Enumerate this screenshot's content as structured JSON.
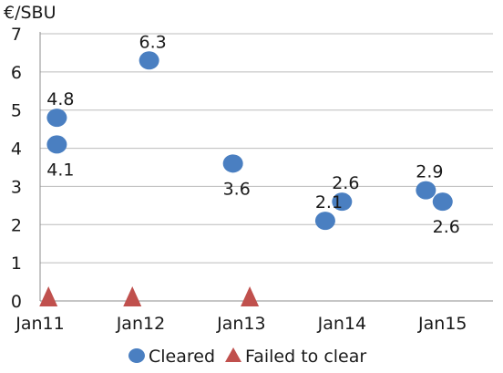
{
  "chart_data": {
    "type": "scatter",
    "title": "",
    "ylabel": "€/SBU",
    "xlabel": "",
    "ylim": [
      0,
      7
    ],
    "y_ticks": [
      "0",
      "1",
      "2",
      "3",
      "4",
      "5",
      "6",
      "7"
    ],
    "x_range": [
      "2011-01",
      "2015-07"
    ],
    "x_ticks": [
      {
        "label": "Jan11",
        "date": "2011-01"
      },
      {
        "label": "Jan12",
        "date": "2012-01"
      },
      {
        "label": "Jan13",
        "date": "2013-01"
      },
      {
        "label": "Jan14",
        "date": "2014-01"
      },
      {
        "label": "Jan15",
        "date": "2015-01"
      }
    ],
    "grid": "horizontal",
    "legend_position": "bottom",
    "series": [
      {
        "name": "Cleared",
        "marker": "circle",
        "color": "#4a7fc1",
        "points": [
          {
            "date": "2011-03",
            "y": 4.8,
            "label": "4.8",
            "label_pos": "above"
          },
          {
            "date": "2011-03",
            "y": 4.1,
            "label": "4.1",
            "label_pos": "below"
          },
          {
            "date": "2012-02",
            "y": 6.3,
            "label": "6.3",
            "label_pos": "above"
          },
          {
            "date": "2012-12",
            "y": 3.6,
            "label": "3.6",
            "label_pos": "below"
          },
          {
            "date": "2013-11",
            "y": 2.1,
            "label": "2.1",
            "label_pos": "above"
          },
          {
            "date": "2014-01",
            "y": 2.6,
            "label": "2.6",
            "label_pos": "above"
          },
          {
            "date": "2014-11",
            "y": 2.9,
            "label": "2.9",
            "label_pos": "above"
          },
          {
            "date": "2015-01",
            "y": 2.6,
            "label": "2.6",
            "label_pos": "below"
          }
        ]
      },
      {
        "name": "Failed to clear",
        "marker": "triangle",
        "color": "#c0504d",
        "points": [
          {
            "date": "2011-02",
            "y": 0
          },
          {
            "date": "2011-12",
            "y": 0
          },
          {
            "date": "2013-02",
            "y": 0
          }
        ]
      }
    ]
  }
}
